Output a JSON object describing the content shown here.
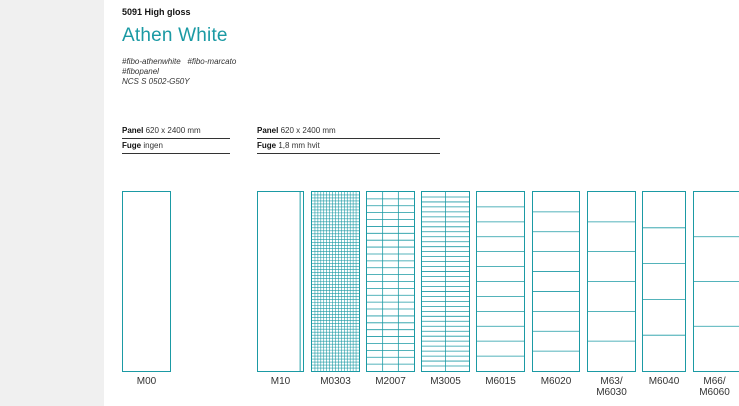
{
  "product": {
    "code": "5091 High gloss",
    "name": "Athen White",
    "tags": [
      "#fibo-athenwhite",
      "#fibo-marcato",
      "#fibopanel"
    ],
    "ncs": "NCS S 0502-G50Y"
  },
  "specs": [
    {
      "panel_label": "Panel",
      "panel_value": "620 x 2400 mm",
      "fuge_label": "Fuge",
      "fuge_value": "ingen"
    },
    {
      "panel_label": "Panel",
      "panel_value": "620 x 2400 mm",
      "fuge_label": "Fuge",
      "fuge_value": "1,8 mm hvit"
    }
  ],
  "colors": {
    "accent": "#1b9aa4",
    "sidebar": "#f0f0f0"
  },
  "patterns": [
    {
      "label": "M00",
      "label2": ""
    },
    {
      "label": "M10",
      "label2": ""
    },
    {
      "label": "M0303",
      "label2": ""
    },
    {
      "label": "M2007",
      "label2": ""
    },
    {
      "label": "M3005",
      "label2": ""
    },
    {
      "label": "M6015",
      "label2": ""
    },
    {
      "label": "M6020",
      "label2": ""
    },
    {
      "label": "M63/",
      "label2": "M6030"
    },
    {
      "label": "M6040",
      "label2": ""
    },
    {
      "label": "M66/",
      "label2": "M6060"
    }
  ]
}
